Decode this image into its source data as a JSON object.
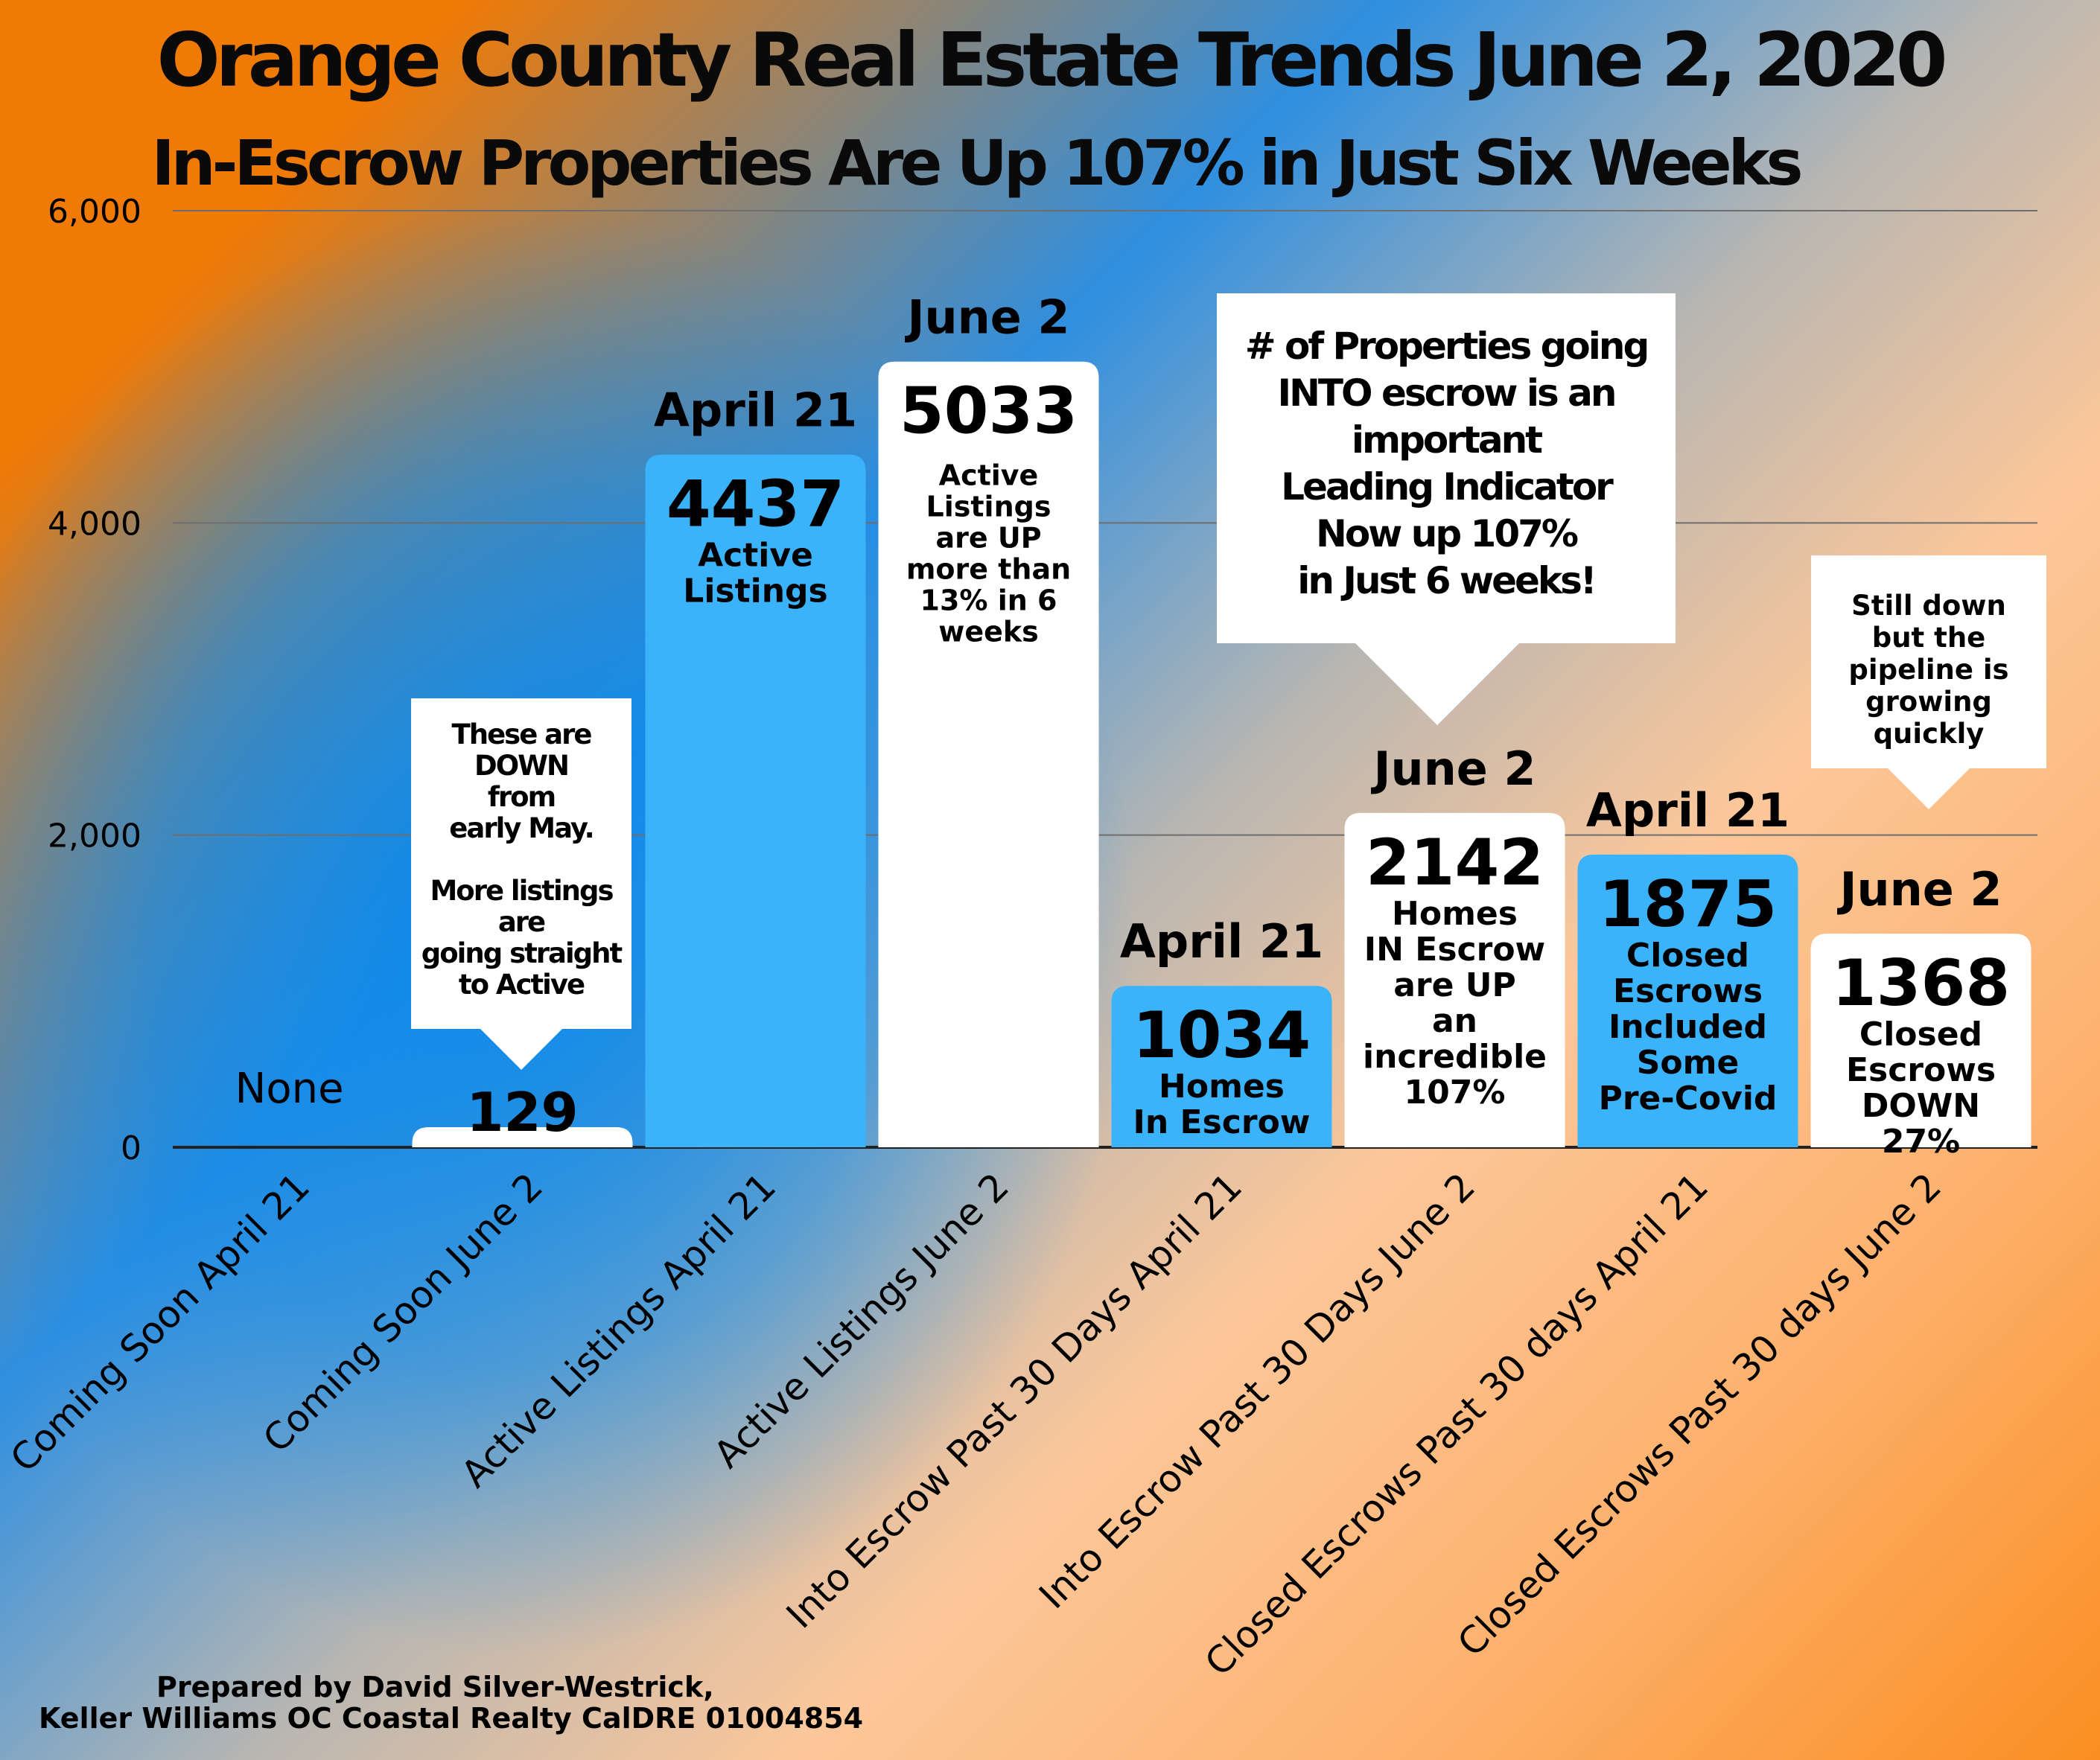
{
  "header": {
    "title": "Orange County Real Estate Trends  June 2,  2020",
    "subtitle": "In-Escrow Properties Are Up 107% in Just Six Weeks"
  },
  "chart_data": {
    "type": "bar",
    "categories": [
      "Coming Soon April 21",
      "Coming Soon June 2",
      "Active Listings April 21",
      "Active Listings June 2",
      "Into Escrow Past 30 Days April 21",
      "Into Escrow Past 30 Days June 2",
      "Closed Escrows Past 30 days April 21",
      "Closed Escrows Past 30 days June 2"
    ],
    "values": [
      0,
      129,
      4437,
      5033,
      1034,
      2142,
      1875,
      1368
    ],
    "ylim": [
      0,
      6000
    ],
    "yticks": [
      0,
      2000,
      4000,
      6000
    ],
    "ytick_labels": [
      "0",
      "2,000",
      "4,000",
      "6,000"
    ],
    "grid": true,
    "bar_colors": [
      "#ffffff",
      "#ffffff",
      "#3bb3fa",
      "#ffffff",
      "#3bb3fa",
      "#ffffff",
      "#3bb3fa",
      "#ffffff"
    ],
    "value_labels": [
      "None",
      "129",
      "4437",
      "5033",
      "1034",
      "2142",
      "1875",
      "1368"
    ],
    "date_labels": [
      "",
      "",
      "April 21",
      "June 2",
      "April 21",
      "June 2",
      "April 21",
      "June 2"
    ],
    "bar_notes": [
      "",
      "",
      "Active\nListings",
      "Active\nListings\nare UP\nmore than\n13% in 6\nweeks",
      "Homes\nIn Escrow",
      "Homes\nIN Escrow\nare UP\nan\nincredible\n107%",
      "Closed\nEscrows\nIncluded\nSome\nPre-Covid",
      "Closed\nEscrows\nDOWN\n27%"
    ]
  },
  "callouts": {
    "coming_soon": "These are\nDOWN\nfrom\nearly May.\n\nMore listings\nare\ngoing straight\nto Active",
    "leading_indicator": "# of Properties going\nINTO escrow  is an\nimportant\nLeading Indicator\nNow up 107%\nin Just 6 weeks!",
    "pipeline": "Still down\nbut the\npipeline is\ngrowing\nquickly"
  },
  "footer": {
    "line1": "Prepared by David Silver-Westrick,",
    "line2": "Keller Williams OC Coastal Realty CalDRE 01004854"
  }
}
